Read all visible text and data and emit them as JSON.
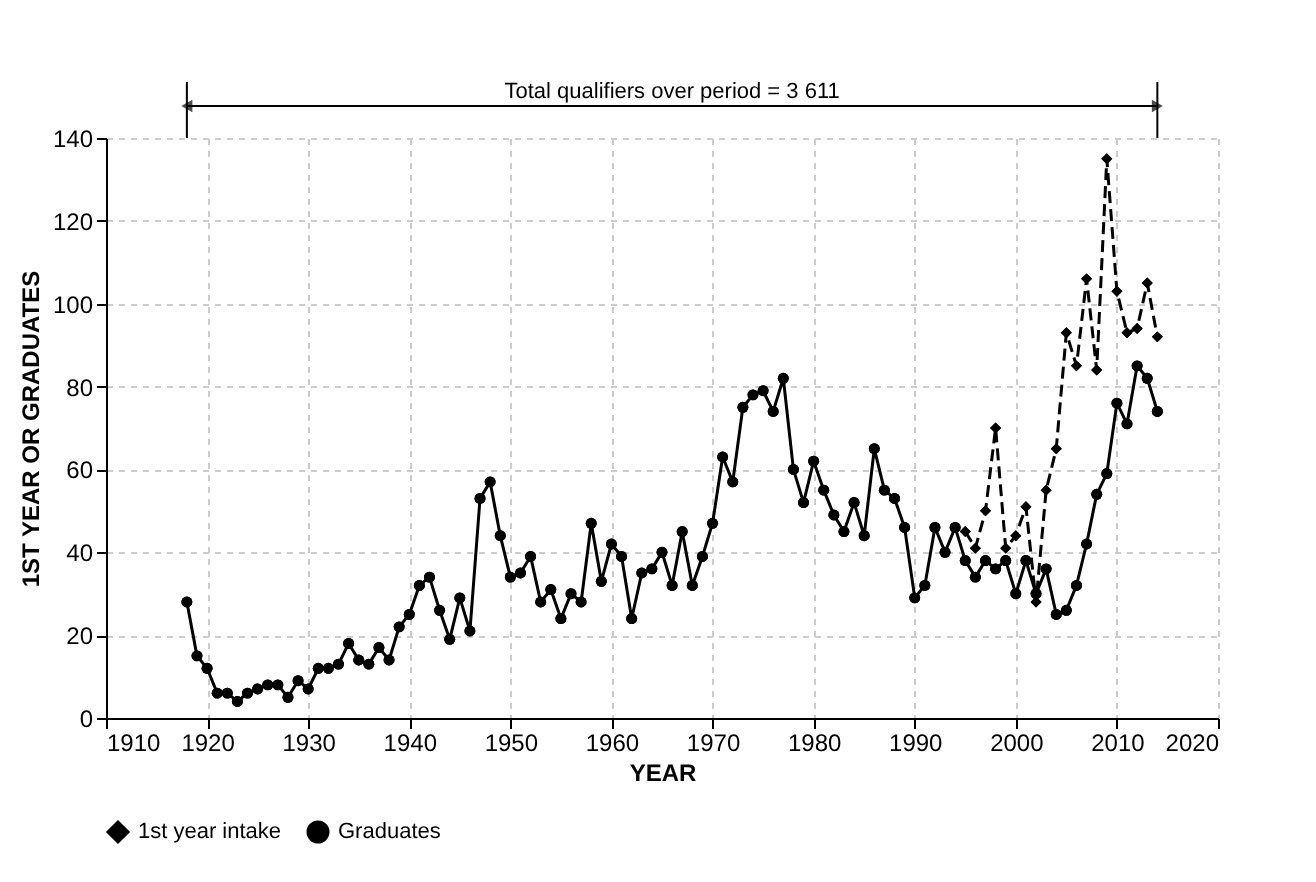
{
  "chart_data": {
    "type": "line",
    "xlabel": "YEAR",
    "ylabel": "1ST YEAR OR GRADUATES",
    "annotations": [
      "Total qualifiers over period = 3 611"
    ],
    "xlim": [
      1910,
      2020
    ],
    "xticks": [
      1910,
      1920,
      1930,
      1940,
      1950,
      1960,
      1970,
      1980,
      1990,
      2000,
      2010,
      2020
    ],
    "ylim": [
      0,
      140
    ],
    "yticks": [
      0,
      20,
      40,
      60,
      80,
      100,
      120,
      140
    ],
    "grid": true,
    "legend": "bottom",
    "series": [
      {
        "name": "1st year intake",
        "color": "#000000",
        "marker": "diamond",
        "line_style": "dashed",
        "x": [
          1995,
          1996,
          1997,
          1998,
          1999,
          2000,
          2001,
          2002,
          2003,
          2004,
          2005,
          2006,
          2007,
          2008,
          2009,
          2010,
          2011,
          2012,
          2013,
          2014
        ],
        "values": [
          45,
          41,
          50,
          70,
          41,
          44,
          51,
          28,
          55,
          65,
          93,
          85,
          106,
          84,
          135,
          103,
          93,
          94,
          105,
          92
        ]
      },
      {
        "name": "Graduates",
        "color": "#000000",
        "marker": "circle",
        "line_style": "solid",
        "x": [
          1918,
          1919,
          1920,
          1921,
          1922,
          1923,
          1924,
          1925,
          1926,
          1927,
          1928,
          1929,
          1930,
          1931,
          1932,
          1933,
          1934,
          1935,
          1936,
          1937,
          1938,
          1939,
          1940,
          1941,
          1942,
          1943,
          1944,
          1945,
          1946,
          1947,
          1948,
          1949,
          1950,
          1951,
          1952,
          1953,
          1954,
          1955,
          1956,
          1957,
          1958,
          1959,
          1960,
          1961,
          1962,
          1963,
          1964,
          1965,
          1966,
          1967,
          1968,
          1969,
          1970,
          1971,
          1972,
          1973,
          1974,
          1975,
          1976,
          1977,
          1978,
          1979,
          1980,
          1981,
          1982,
          1983,
          1984,
          1985,
          1986,
          1987,
          1988,
          1989,
          1990,
          1991,
          1992,
          1993,
          1994,
          1995,
          1996,
          1997,
          1998,
          1999,
          2000,
          2001,
          2002,
          2003,
          2004,
          2005,
          2006,
          2007,
          2008,
          2009,
          2010,
          2011,
          2012,
          2013,
          2014
        ],
        "values": [
          28,
          15,
          12,
          6,
          6,
          4,
          6,
          7,
          8,
          8,
          5,
          9,
          7,
          12,
          12,
          13,
          18,
          14,
          13,
          17,
          14,
          22,
          25,
          32,
          34,
          26,
          19,
          29,
          21,
          53,
          57,
          44,
          34,
          35,
          39,
          28,
          31,
          24,
          30,
          28,
          47,
          33,
          42,
          39,
          24,
          35,
          36,
          40,
          32,
          45,
          32,
          39,
          47,
          63,
          57,
          75,
          78,
          79,
          74,
          82,
          60,
          52,
          62,
          55,
          49,
          45,
          52,
          44,
          65,
          55,
          53,
          46,
          29,
          32,
          46,
          40,
          46,
          38,
          34,
          38,
          36,
          38,
          30,
          38,
          30,
          36,
          25,
          26,
          32,
          42,
          54,
          59,
          76,
          71,
          85,
          82,
          74
        ]
      }
    ]
  }
}
